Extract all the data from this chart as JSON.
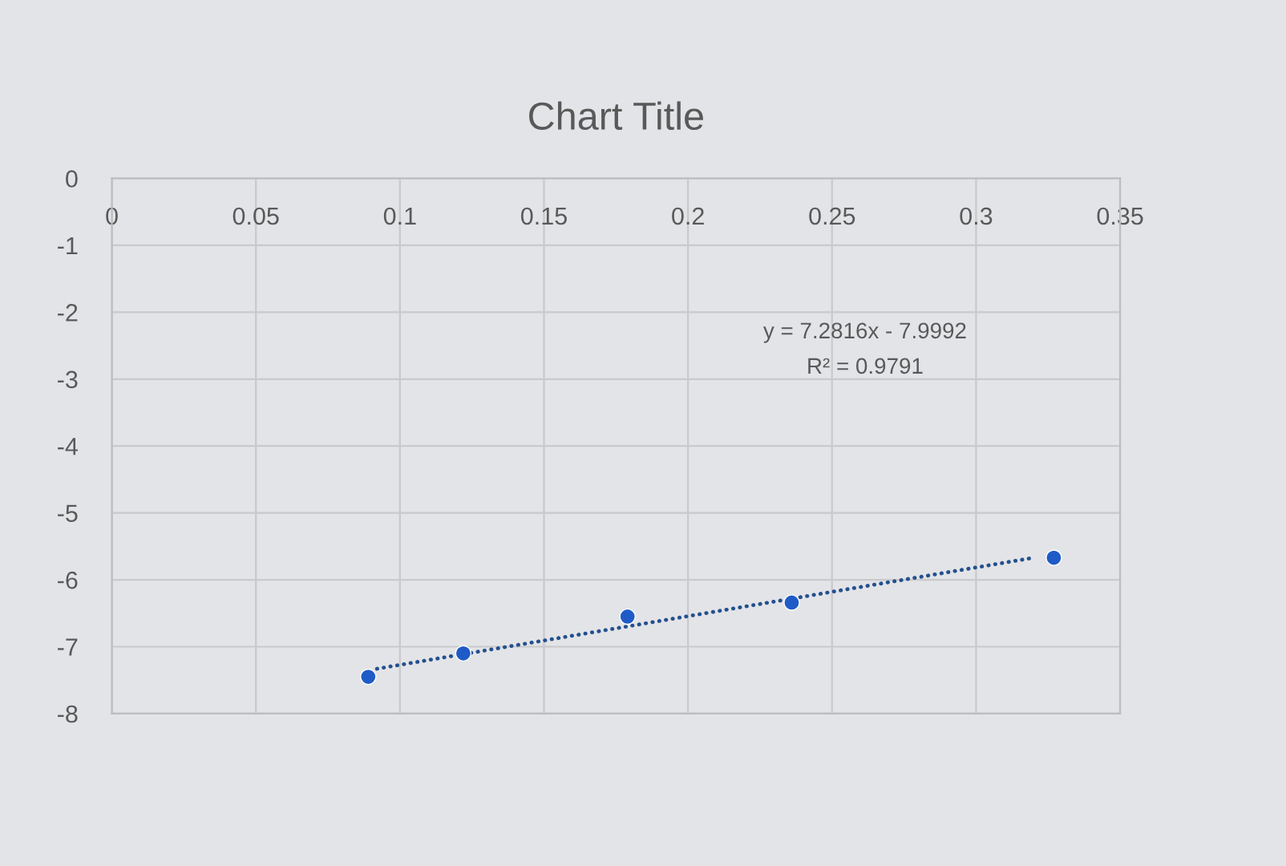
{
  "chart_data": {
    "type": "scatter",
    "title": "Chart Title",
    "xlim": [
      0,
      0.35
    ],
    "ylim": [
      -8,
      0
    ],
    "xticks": [
      0,
      0.05,
      0.1,
      0.15,
      0.2,
      0.25,
      0.3,
      0.35
    ],
    "yticks": [
      0,
      -1,
      -2,
      -3,
      -4,
      -5,
      -6,
      -7,
      -8
    ],
    "grid": true,
    "marker": "circle",
    "annotations": [
      "y = 7.2816x - 7.9992",
      "R² = 0.9791"
    ],
    "series": [
      {
        "color": "#1f5bc6",
        "x": [
          0.089,
          0.122,
          0.179,
          0.236,
          0.327
        ],
        "values": [
          -7.45,
          -7.1,
          -6.55,
          -6.34,
          -5.67
        ]
      },
      {
        "type": "line",
        "color": "#24508f",
        "line_style": "dotted",
        "marker": "none",
        "x": [
          0.092,
          0.32
        ],
        "values": [
          -7.33,
          -5.67
        ]
      }
    ]
  }
}
